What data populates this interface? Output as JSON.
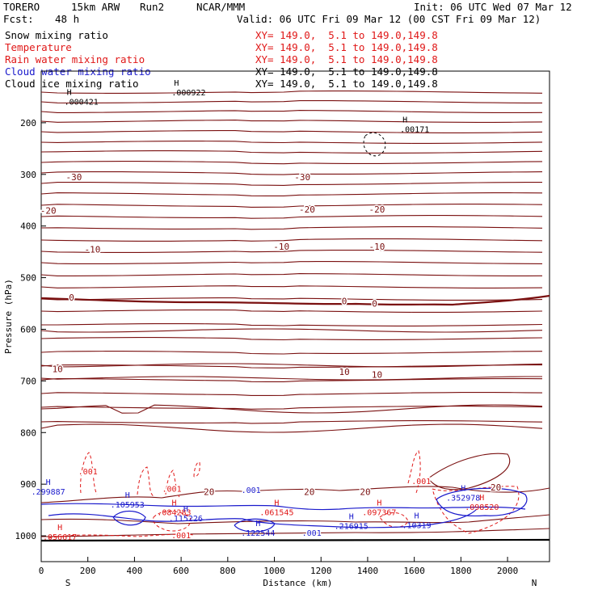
{
  "header": {
    "model": "TORERO",
    "resolution": "15km ARW",
    "run": "Run2",
    "center": "NCAR/MMM",
    "init": "Init: 06 UTC Wed 07 Mar 12",
    "fcst_label": "Fcst:",
    "fcst_hours": "48 h",
    "valid": "Valid: 06 UTC Fri 09 Mar 12 (00 CST Fri 09 Mar 12)"
  },
  "fields": [
    {
      "label": "Snow mixing ratio",
      "range": "XY= 149.0,  5.1 to 149.0,149.8",
      "color": "#000000"
    },
    {
      "label": "Temperature",
      "range": "XY= 149.0,  5.1 to 149.0,149.8",
      "color": "#e01818"
    },
    {
      "label": "Rain water mixing ratio",
      "range": "XY= 149.0,  5.1 to 149.0,149.8",
      "color": "#e01818"
    },
    {
      "label": "Cloud water mixing ratio",
      "range": "XY= 149.0,  5.1 to 149.0,149.8",
      "color": "#1a1acc"
    },
    {
      "label": "Cloud ice mixing ratio",
      "range": "XY= 149.0,  5.1 to 149.0,149.8",
      "color": "#000000"
    }
  ],
  "chart_data": {
    "type": "cross-section contour",
    "xlabel": "Distance (km)",
    "ylabel": "Pressure (hPa)",
    "xlim": [
      0,
      2180
    ],
    "ylim": [
      1050,
      100
    ],
    "x_ticks": [
      0,
      200,
      400,
      600,
      800,
      1000,
      1200,
      1400,
      1600,
      1800,
      2000
    ],
    "y_ticks": [
      200,
      300,
      400,
      500,
      600,
      700,
      800,
      900,
      1000
    ],
    "end_labels": {
      "left": "S",
      "right": "N"
    },
    "temperature_labels": [
      {
        "x": 140,
        "p": 305,
        "text": "-30"
      },
      {
        "x": 1120,
        "p": 305,
        "text": "-30"
      },
      {
        "x": 30,
        "p": 370,
        "text": "-20"
      },
      {
        "x": 1140,
        "p": 368,
        "text": "-20"
      },
      {
        "x": 1440,
        "p": 368,
        "text": "-20"
      },
      {
        "x": 220,
        "p": 445,
        "text": "-10"
      },
      {
        "x": 1030,
        "p": 440,
        "text": "-10"
      },
      {
        "x": 1440,
        "p": 440,
        "text": "-10"
      },
      {
        "x": 130,
        "p": 538,
        "text": "0"
      },
      {
        "x": 1300,
        "p": 545,
        "text": "0"
      },
      {
        "x": 1430,
        "p": 550,
        "text": "0"
      },
      {
        "x": 70,
        "p": 677,
        "text": "10"
      },
      {
        "x": 1300,
        "p": 682,
        "text": "10"
      },
      {
        "x": 1440,
        "p": 688,
        "text": "10"
      },
      {
        "x": 720,
        "p": 915,
        "text": "20"
      },
      {
        "x": 1150,
        "p": 915,
        "text": "20"
      },
      {
        "x": 1390,
        "p": 915,
        "text": "20"
      },
      {
        "x": 1950,
        "p": 906,
        "text": "20"
      }
    ],
    "snow_maxima": [
      {
        "x": 120,
        "p": 165,
        "value": ".000421"
      },
      {
        "x": 580,
        "p": 147,
        "value": ".000922"
      },
      {
        "x": 1560,
        "p": 218,
        "value": ".00171"
      }
    ],
    "rain_labels": [
      {
        "x": 200,
        "p": 881,
        "value": ".001"
      },
      {
        "x": 560,
        "p": 915,
        "value": ".001"
      },
      {
        "x": 1630,
        "p": 900,
        "value": ".001"
      },
      {
        "x": 600,
        "p": 1005,
        "value": ".001"
      }
    ],
    "rain_maxima": [
      {
        "x": 80,
        "p": 1008,
        "value": ".056617"
      },
      {
        "x": 570,
        "p": 960,
        "value": ".084283"
      },
      {
        "x": 1010,
        "p": 960,
        "value": ".061545"
      },
      {
        "x": 1450,
        "p": 960,
        "value": ".097367"
      },
      {
        "x": 1890,
        "p": 950,
        "value": ".098520"
      }
    ],
    "cloud_water_labels": [
      {
        "x": 900,
        "p": 917,
        "value": ".001"
      },
      {
        "x": 1160,
        "p": 1000,
        "value": ".001"
      }
    ],
    "cloud_water_maxima": [
      {
        "x": 30,
        "p": 920,
        "value": ".299887"
      },
      {
        "x": 370,
        "p": 945,
        "value": ".105953"
      },
      {
        "x": 620,
        "p": 972,
        "value": ".115226"
      },
      {
        "x": 930,
        "p": 1000,
        "value": ".122544"
      },
      {
        "x": 1330,
        "p": 987,
        "value": ".216915"
      },
      {
        "x": 1610,
        "p": 985,
        "value": ".10319"
      },
      {
        "x": 1810,
        "p": 932,
        "value": ".352978"
      }
    ]
  }
}
